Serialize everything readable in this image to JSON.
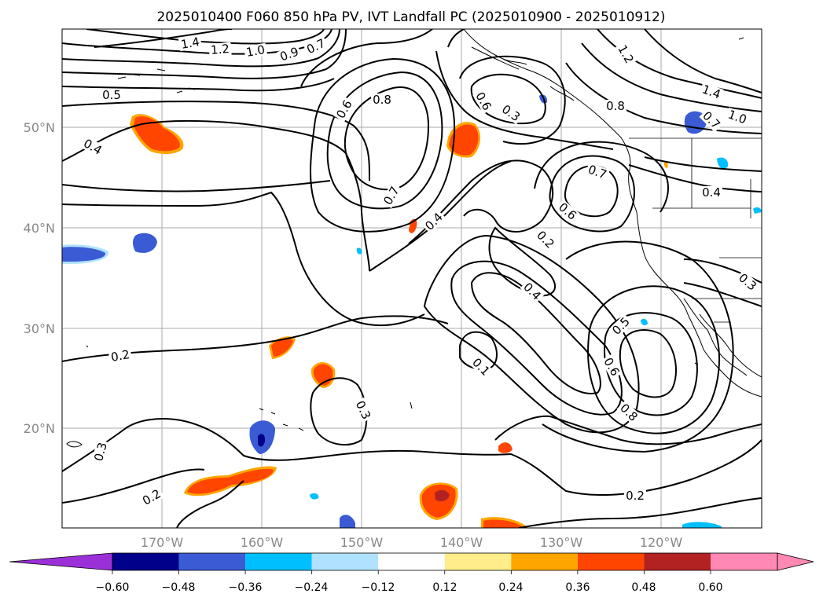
{
  "title": "2025010400 F060 850 hPa PV, IVT Landfall PC (2025010900 - 2025010912)",
  "map": {
    "lat_labels": [
      "50°N",
      "40°N",
      "30°N",
      "20°N"
    ],
    "lon_labels": [
      "170°W",
      "160°W",
      "150°W",
      "140°W",
      "130°W",
      "120°W"
    ],
    "grid_color": "#aaaaaa",
    "land_outline_color": "#000000",
    "contour_color": "#000000",
    "contour_labels": [
      "1.4",
      "1.2",
      "1.0",
      "0.9",
      "0.7",
      "0.5",
      "0.4",
      "0.6",
      "0.8",
      "0.7",
      "0.4",
      "0.3",
      "0.6",
      "1.2",
      "1.4",
      "0.8",
      "1.0",
      "0.7",
      "0.7",
      "0.4",
      "0.6",
      "0.2",
      "0.4",
      "0.3",
      "0.5",
      "0.6",
      "0.8",
      "0.1",
      "0.3",
      "0.2",
      "0.3",
      "0.2",
      "0.2",
      "0.2"
    ]
  },
  "colorbar": {
    "tick_labels": [
      "−0.60",
      "−0.48",
      "−0.36",
      "−0.24",
      "−0.12",
      "0.12",
      "0.24",
      "0.36",
      "0.48",
      "0.60"
    ],
    "colors": [
      "#9b30d9",
      "#00008b",
      "#3a5bd4",
      "#00bfff",
      "#b0e2ff",
      "#ffffff",
      "#ffec8b",
      "#ffa500",
      "#ff4500",
      "#b22222",
      "#ff89b4",
      "#ff89b4"
    ],
    "extend": "both"
  },
  "shading": {
    "positive_colors": [
      "#ffec8b",
      "#ffa500",
      "#ff4500",
      "#b22222"
    ],
    "negative_colors": [
      "#b0e2ff",
      "#00bfff",
      "#3a5bd4",
      "#00008b"
    ]
  }
}
